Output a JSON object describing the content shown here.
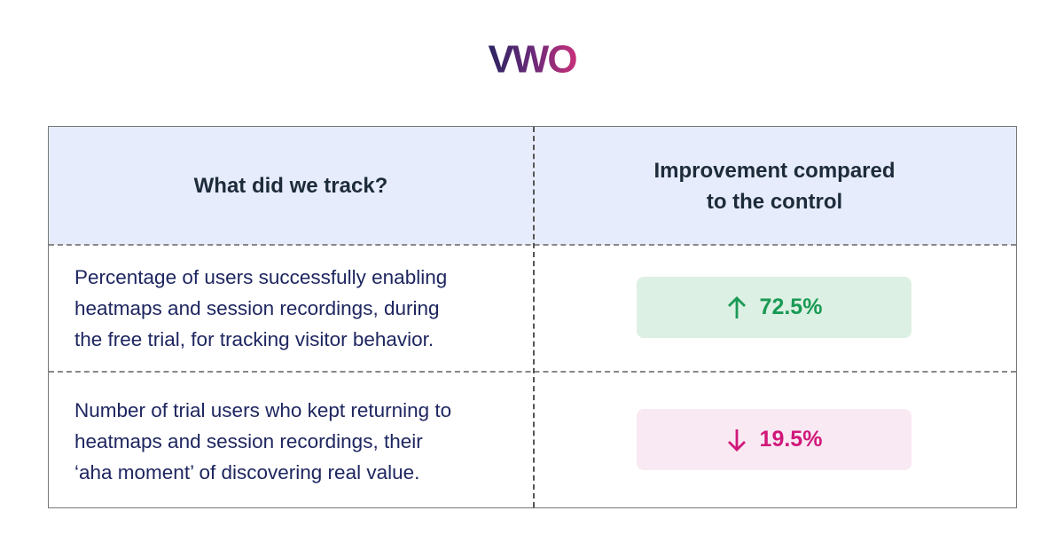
{
  "logo": "VWO",
  "table": {
    "header": [
      [
        "What did we track?"
      ],
      [
        "Improvement compared",
        "to the control"
      ]
    ],
    "rows": [
      {
        "metric": [
          "Percentage of users successfully enabling",
          "heatmaps and session recordings, during",
          "the free trial, for tracking visitor behavior."
        ],
        "change": "72.5%"
      },
      {
        "metric": [
          "Number of trial users who kept returning to",
          "heatmaps and session recordings, their",
          "‘aha moment’ of discovering real value."
        ],
        "change": "19.5%"
      }
    ]
  }
}
